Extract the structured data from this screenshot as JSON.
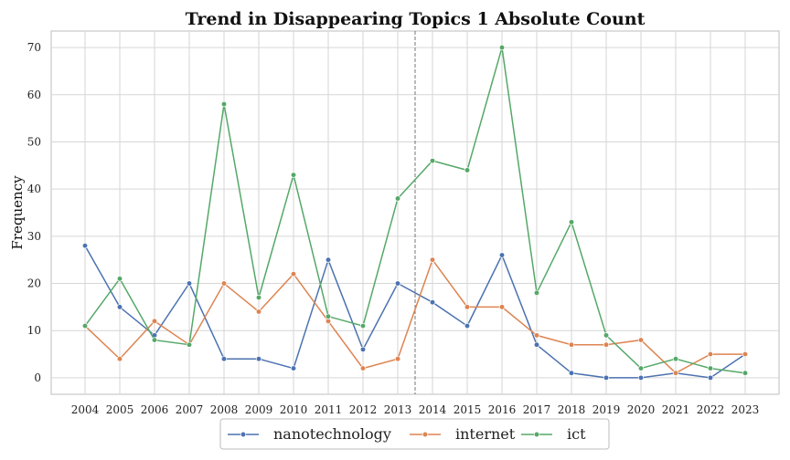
{
  "chart_data": {
    "type": "line",
    "title": "Trend in Disappearing Topics 1  Absolute Count",
    "xlabel": "",
    "ylabel": "Frequency",
    "categories": [
      "2004",
      "2005",
      "2006",
      "2007",
      "2008",
      "2009",
      "2010",
      "2011",
      "2012",
      "2013",
      "2014",
      "2015",
      "2016",
      "2017",
      "2018",
      "2019",
      "2020",
      "2021",
      "2022",
      "2023"
    ],
    "yticks": [
      0,
      10,
      20,
      30,
      40,
      50,
      60,
      70
    ],
    "ylim": [
      -3.5,
      73.5
    ],
    "grid": true,
    "legend_placement": "bottom-center",
    "vline_between": [
      "2013",
      "2014"
    ],
    "series": [
      {
        "name": "nanotechnology",
        "color": "#4c72b0",
        "values": [
          28,
          15,
          9,
          20,
          4,
          4,
          2,
          25,
          6,
          20,
          16,
          11,
          26,
          7,
          1,
          0,
          0,
          1,
          0,
          5
        ]
      },
      {
        "name": "internet",
        "color": "#dd8452",
        "values": [
          11,
          4,
          12,
          7,
          20,
          14,
          22,
          12,
          2,
          4,
          25,
          15,
          15,
          9,
          7,
          7,
          8,
          1,
          5,
          5
        ]
      },
      {
        "name": "ict",
        "color": "#55a868",
        "values": [
          11,
          21,
          8,
          7,
          58,
          17,
          43,
          13,
          11,
          38,
          46,
          44,
          70,
          18,
          33,
          9,
          2,
          4,
          2,
          1
        ]
      }
    ]
  }
}
